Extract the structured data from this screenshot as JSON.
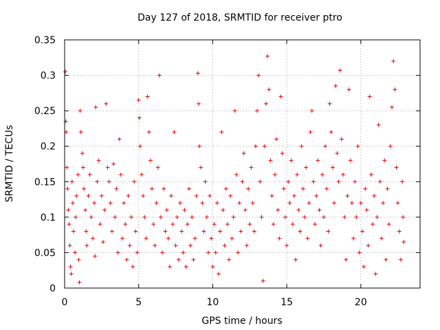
{
  "chart_data": {
    "type": "scatter",
    "title": "Day 127 of 2018, SRMTID for receiver ptro",
    "xlabel": "GPS time / hours",
    "ylabel": "SRMTID / TECUs",
    "xlim": [
      0,
      24
    ],
    "ylim": [
      0,
      0.35
    ],
    "xticks": [
      0,
      5,
      10,
      15,
      20
    ],
    "xtick_labels": [
      "0",
      "5",
      "10",
      "15",
      "20"
    ],
    "yticks": [
      0,
      0.05,
      0.1,
      0.15,
      0.2,
      0.25,
      0.3,
      0.35
    ],
    "ytick_labels": [
      "0",
      "0.05",
      "0.1",
      "0.15",
      "0.2",
      "0.25",
      "0.3",
      "0.35"
    ],
    "grid": true,
    "marker": "+",
    "color": "#e00000",
    "series": [
      {
        "name": "SRMTID",
        "points": [
          [
            0.05,
            0.305
          ],
          [
            0.08,
            0.235
          ],
          [
            0.1,
            0.22
          ],
          [
            0.15,
            0.17
          ],
          [
            0.2,
            0.14
          ],
          [
            0.25,
            0.11
          ],
          [
            0.3,
            0.09
          ],
          [
            0.35,
            0.06
          ],
          [
            0.4,
            0.03
          ],
          [
            0.45,
            0.02
          ],
          [
            0.5,
            0.15
          ],
          [
            0.55,
            0.12
          ],
          [
            0.6,
            0.08
          ],
          [
            0.7,
            0.05
          ],
          [
            0.75,
            0.1
          ],
          [
            0.8,
            0.13
          ],
          [
            0.9,
            0.16
          ],
          [
            0.95,
            0.04
          ],
          [
            1.0,
            0.008
          ],
          [
            1.05,
            0.25
          ],
          [
            1.1,
            0.22
          ],
          [
            1.2,
            0.19
          ],
          [
            1.25,
            0.17
          ],
          [
            1.3,
            0.14
          ],
          [
            1.4,
            0.11
          ],
          [
            1.45,
            0.08
          ],
          [
            1.5,
            0.06
          ],
          [
            1.6,
            0.13
          ],
          [
            1.7,
            0.16
          ],
          [
            1.8,
            0.1
          ],
          [
            1.9,
            0.07
          ],
          [
            2.0,
            0.12
          ],
          [
            2.05,
            0.045
          ],
          [
            2.1,
            0.255
          ],
          [
            2.2,
            0.15
          ],
          [
            2.3,
            0.18
          ],
          [
            2.4,
            0.09
          ],
          [
            2.5,
            0.13
          ],
          [
            2.6,
            0.065
          ],
          [
            2.7,
            0.11
          ],
          [
            2.8,
            0.26
          ],
          [
            2.9,
            0.17
          ],
          [
            3.0,
            0.15
          ],
          [
            3.1,
            0.12
          ],
          [
            3.2,
            0.08
          ],
          [
            3.3,
            0.175
          ],
          [
            3.4,
            0.1
          ],
          [
            3.5,
            0.14
          ],
          [
            3.6,
            0.05
          ],
          [
            3.7,
            0.21
          ],
          [
            3.8,
            0.16
          ],
          [
            3.9,
            0.07
          ],
          [
            4.0,
            0.12
          ],
          [
            4.1,
            0.09
          ],
          [
            4.2,
            0.04
          ],
          [
            4.3,
            0.13
          ],
          [
            4.4,
            0.06
          ],
          [
            4.5,
            0.1
          ],
          [
            4.6,
            0.03
          ],
          [
            4.7,
            0.15
          ],
          [
            4.8,
            0.08
          ],
          [
            4.9,
            0.05
          ],
          [
            5.0,
            0.265
          ],
          [
            5.05,
            0.24
          ],
          [
            5.1,
            0.2
          ],
          [
            5.2,
            0.16
          ],
          [
            5.3,
            0.13
          ],
          [
            5.4,
            0.1
          ],
          [
            5.5,
            0.07
          ],
          [
            5.6,
            0.27
          ],
          [
            5.7,
            0.22
          ],
          [
            5.8,
            0.18
          ],
          [
            5.9,
            0.14
          ],
          [
            6.0,
            0.09
          ],
          [
            6.1,
            0.06
          ],
          [
            6.2,
            0.12
          ],
          [
            6.3,
            0.17
          ],
          [
            6.4,
            0.3
          ],
          [
            6.5,
            0.1
          ],
          [
            6.6,
            0.05
          ],
          [
            6.7,
            0.14
          ],
          [
            6.8,
            0.08
          ],
          [
            6.9,
            0.11
          ],
          [
            7.0,
            0.07
          ],
          [
            7.1,
            0.03
          ],
          [
            7.2,
            0.13
          ],
          [
            7.3,
            0.09
          ],
          [
            7.4,
            0.22
          ],
          [
            7.5,
            0.06
          ],
          [
            7.6,
            0.1
          ],
          [
            7.7,
            0.04
          ],
          [
            7.8,
            0.12
          ],
          [
            7.9,
            0.08
          ],
          [
            8.0,
            0.05
          ],
          [
            8.1,
            0.11
          ],
          [
            8.2,
            0.03
          ],
          [
            8.3,
            0.09
          ],
          [
            8.4,
            0.14
          ],
          [
            8.5,
            0.06
          ],
          [
            8.6,
            0.1
          ],
          [
            8.7,
            0.04
          ],
          [
            8.8,
            0.07
          ],
          [
            8.9,
            0.13
          ],
          [
            9.0,
            0.303
          ],
          [
            9.05,
            0.26
          ],
          [
            9.1,
            0.2
          ],
          [
            9.2,
            0.17
          ],
          [
            9.3,
            0.12
          ],
          [
            9.4,
            0.08
          ],
          [
            9.5,
            0.15
          ],
          [
            9.6,
            0.1
          ],
          [
            9.7,
            0.05
          ],
          [
            9.8,
            0.13
          ],
          [
            9.9,
            0.07
          ],
          [
            10.0,
            0.03
          ],
          [
            10.1,
            0.09
          ],
          [
            10.2,
            0.05
          ],
          [
            10.3,
            0.12
          ],
          [
            10.4,
            0.02
          ],
          [
            10.5,
            0.08
          ],
          [
            10.6,
            0.22
          ],
          [
            10.7,
            0.11
          ],
          [
            10.8,
            0.06
          ],
          [
            10.9,
            0.14
          ],
          [
            11.0,
            0.09
          ],
          [
            11.1,
            0.04
          ],
          [
            11.2,
            0.13
          ],
          [
            11.3,
            0.07
          ],
          [
            11.4,
            0.1
          ],
          [
            11.5,
            0.25
          ],
          [
            11.6,
            0.16
          ],
          [
            11.7,
            0.05
          ],
          [
            11.8,
            0.12
          ],
          [
            11.9,
            0.08
          ],
          [
            12.0,
            0.15
          ],
          [
            12.1,
            0.19
          ],
          [
            12.2,
            0.11
          ],
          [
            12.3,
            0.06
          ],
          [
            12.4,
            0.14
          ],
          [
            12.5,
            0.09
          ],
          [
            12.6,
            0.17
          ],
          [
            12.7,
            0.12
          ],
          [
            12.8,
            0.08
          ],
          [
            12.9,
            0.2
          ],
          [
            13.0,
            0.25
          ],
          [
            13.1,
            0.3
          ],
          [
            13.2,
            0.15
          ],
          [
            13.3,
            0.1
          ],
          [
            13.4,
            0.01
          ],
          [
            13.5,
            0.2
          ],
          [
            13.6,
            0.26
          ],
          [
            13.7,
            0.327
          ],
          [
            13.8,
            0.28
          ],
          [
            13.9,
            0.18
          ],
          [
            14.0,
            0.13
          ],
          [
            14.1,
            0.09
          ],
          [
            14.2,
            0.16
          ],
          [
            14.3,
            0.21
          ],
          [
            14.4,
            0.11
          ],
          [
            14.5,
            0.07
          ],
          [
            14.6,
            0.27
          ],
          [
            14.7,
            0.19
          ],
          [
            14.8,
            0.14
          ],
          [
            14.9,
            0.1
          ],
          [
            15.0,
            0.06
          ],
          [
            15.1,
            0.15
          ],
          [
            15.2,
            0.12
          ],
          [
            15.3,
            0.18
          ],
          [
            15.4,
            0.09
          ],
          [
            15.5,
            0.13
          ],
          [
            15.6,
            0.04
          ],
          [
            15.7,
            0.16
          ],
          [
            15.8,
            0.11
          ],
          [
            15.9,
            0.08
          ],
          [
            16.0,
            0.2
          ],
          [
            16.1,
            0.14
          ],
          [
            16.2,
            0.1
          ],
          [
            16.3,
            0.17
          ],
          [
            16.4,
            0.07
          ],
          [
            16.5,
            0.12
          ],
          [
            16.6,
            0.22
          ],
          [
            16.7,
            0.25
          ],
          [
            16.8,
            0.15
          ],
          [
            16.9,
            0.09
          ],
          [
            17.0,
            0.13
          ],
          [
            17.1,
            0.18
          ],
          [
            17.2,
            0.11
          ],
          [
            17.3,
            0.06
          ],
          [
            17.4,
            0.16
          ],
          [
            17.5,
            0.1
          ],
          [
            17.6,
            0.2
          ],
          [
            17.7,
            0.14
          ],
          [
            17.8,
            0.08
          ],
          [
            17.9,
            0.26
          ],
          [
            18.0,
            0.22
          ],
          [
            18.1,
            0.17
          ],
          [
            18.2,
            0.12
          ],
          [
            18.3,
            0.285
          ],
          [
            18.4,
            0.19
          ],
          [
            18.5,
            0.15
          ],
          [
            18.6,
            0.307
          ],
          [
            18.7,
            0.21
          ],
          [
            18.8,
            0.16
          ],
          [
            18.9,
            0.1
          ],
          [
            19.0,
            0.04
          ],
          [
            19.1,
            0.13
          ],
          [
            19.2,
            0.28
          ],
          [
            19.3,
            0.18
          ],
          [
            19.4,
            0.12
          ],
          [
            19.5,
            0.07
          ],
          [
            19.6,
            0.15
          ],
          [
            19.7,
            0.1
          ],
          [
            19.8,
            0.2
          ],
          [
            19.9,
            0.05
          ],
          [
            20.0,
            0.12
          ],
          [
            20.1,
            0.08
          ],
          [
            20.2,
            0.03
          ],
          [
            20.3,
            0.14
          ],
          [
            20.4,
            0.11
          ],
          [
            20.5,
            0.06
          ],
          [
            20.6,
            0.27
          ],
          [
            20.7,
            0.16
          ],
          [
            20.8,
            0.09
          ],
          [
            20.9,
            0.13
          ],
          [
            21.0,
            0.02
          ],
          [
            21.1,
            0.1
          ],
          [
            21.2,
            0.23
          ],
          [
            21.3,
            0.15
          ],
          [
            21.4,
            0.07
          ],
          [
            21.5,
            0.12
          ],
          [
            21.6,
            0.18
          ],
          [
            21.7,
            0.04
          ],
          [
            21.8,
            0.14
          ],
          [
            21.9,
            0.09
          ],
          [
            22.0,
            0.2
          ],
          [
            22.1,
            0.255
          ],
          [
            22.2,
            0.32
          ],
          [
            22.3,
            0.28
          ],
          [
            22.4,
            0.17
          ],
          [
            22.5,
            0.12
          ],
          [
            22.6,
            0.08
          ],
          [
            22.7,
            0.04
          ],
          [
            22.8,
            0.15
          ],
          [
            22.85,
            0.1
          ],
          [
            22.9,
            0.065
          ]
        ]
      }
    ]
  }
}
